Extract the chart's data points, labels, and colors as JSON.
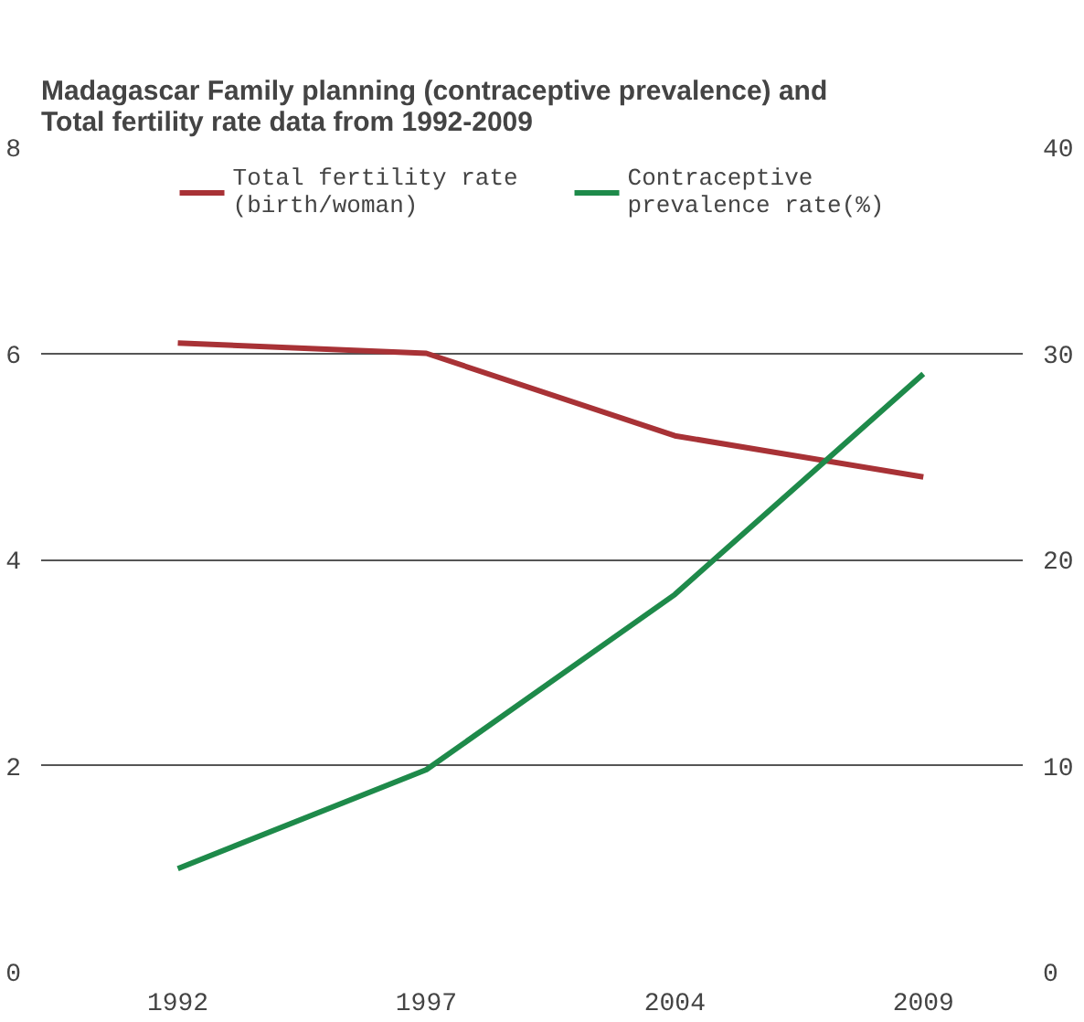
{
  "chart_data": {
    "type": "line",
    "title": "Madagascar Family planning (contraceptive prevalence) and\nTotal fertility rate data from 1992-2009",
    "categories": [
      "1992",
      "1997",
      "2004",
      "2009"
    ],
    "series": [
      {
        "name": "Total fertility rate\n(birth/woman)",
        "color": "#a83236",
        "values": [
          6.1,
          6.0,
          5.2,
          4.8
        ]
      },
      {
        "name": "Contraceptive\nprevalence rate(%)",
        "color": "#1e8a4a",
        "values": [
          5,
          9.8,
          18.3,
          29
        ],
        "axis": "y2"
      }
    ],
    "ylim": [
      0,
      8
    ],
    "yticks": [
      0,
      2,
      4,
      6,
      8
    ],
    "y2lim": [
      0,
      40
    ],
    "y2ticks": [
      0,
      10,
      20,
      30,
      40
    ],
    "grid": "y",
    "legend": "top",
    "marker": "none",
    "line_style": "solid"
  }
}
